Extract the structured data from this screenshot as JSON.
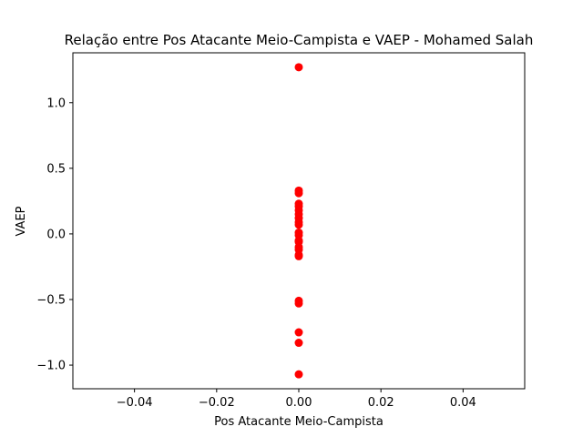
{
  "chart_data": {
    "type": "scatter",
    "title": "Relação entre Pos Atacante Meio-Campista e VAEP - Mohamed Salah",
    "xlabel": "Pos Atacante Meio-Campista",
    "ylabel": "VAEP",
    "xlim": [
      -0.055,
      0.055
    ],
    "ylim": [
      -1.18,
      1.38
    ],
    "xticks": [
      -0.04,
      -0.02,
      0.0,
      0.02,
      0.04
    ],
    "xtick_labels": [
      "−0.04",
      "−0.02",
      "0.00",
      "0.02",
      "0.04"
    ],
    "yticks": [
      -1.0,
      -0.5,
      0.0,
      0.5,
      1.0
    ],
    "ytick_labels": [
      "−1.0",
      "−0.5",
      "0.0",
      "0.5",
      "1.0"
    ],
    "grid": false,
    "series": [
      {
        "color": "#ff0000",
        "points": [
          {
            "x": 0,
            "y": 1.27
          },
          {
            "x": 0,
            "y": 0.33
          },
          {
            "x": 0,
            "y": 0.31
          },
          {
            "x": 0,
            "y": 0.23
          },
          {
            "x": 0,
            "y": 0.21
          },
          {
            "x": 0,
            "y": 0.18
          },
          {
            "x": 0,
            "y": 0.15
          },
          {
            "x": 0,
            "y": 0.12
          },
          {
            "x": 0,
            "y": 0.09
          },
          {
            "x": 0,
            "y": 0.07
          },
          {
            "x": 0,
            "y": 0.01
          },
          {
            "x": 0,
            "y": -0.01
          },
          {
            "x": 0,
            "y": -0.05
          },
          {
            "x": 0,
            "y": -0.06
          },
          {
            "x": 0,
            "y": -0.1
          },
          {
            "x": 0,
            "y": -0.12
          },
          {
            "x": 0,
            "y": -0.16
          },
          {
            "x": 0,
            "y": -0.17
          },
          {
            "x": 0,
            "y": -0.51
          },
          {
            "x": 0,
            "y": -0.53
          },
          {
            "x": 0,
            "y": -0.75
          },
          {
            "x": 0,
            "y": -0.83
          },
          {
            "x": 0,
            "y": -1.07
          }
        ]
      }
    ]
  }
}
